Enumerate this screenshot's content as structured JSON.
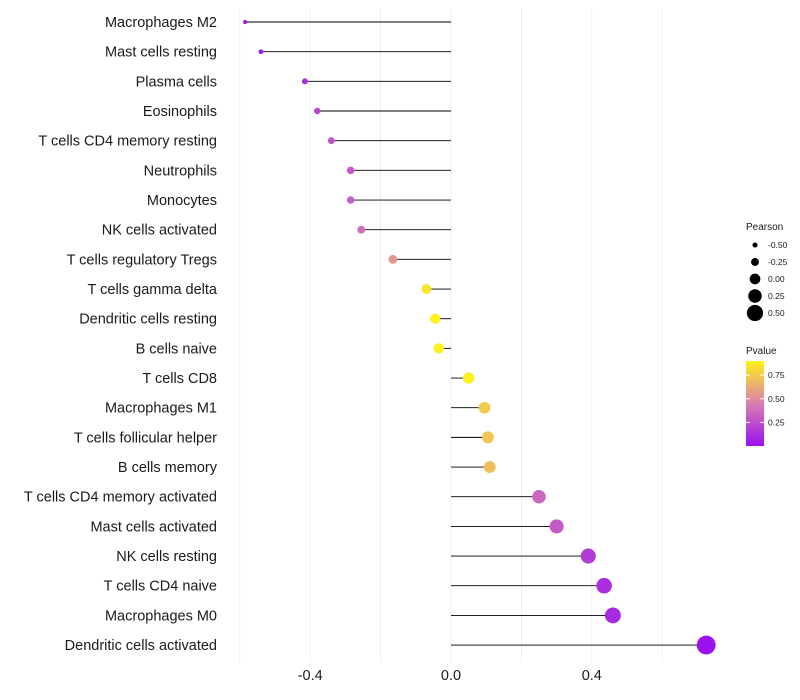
{
  "chart_data": {
    "type": "lollipop",
    "orientation": "horizontal",
    "categories": [
      "Macrophages M2",
      "Mast cells resting",
      "Plasma cells",
      "Eosinophils",
      "T cells CD4 memory resting",
      "Neutrophils",
      "Monocytes",
      "NK cells activated",
      "T cells regulatory  Tregs ",
      "T cells gamma delta",
      "Dendritic cells resting",
      "B cells naive",
      "T cells CD8",
      "Macrophages M1",
      "T cells follicular helper",
      "B cells memory",
      "T cells CD4 memory activated",
      "Mast cells activated",
      "NK cells resting",
      "T cells CD4 naive",
      "Macrophages M0",
      "Dendritic cells activated"
    ],
    "values": [
      -0.585,
      -0.54,
      -0.415,
      -0.38,
      -0.34,
      -0.285,
      -0.285,
      -0.255,
      -0.165,
      -0.07,
      -0.045,
      -0.035,
      0.05,
      0.095,
      0.105,
      0.11,
      0.25,
      0.3,
      0.39,
      0.435,
      0.46,
      0.725
    ],
    "pvalues": [
      0.02,
      0.03,
      0.12,
      0.22,
      0.28,
      0.3,
      0.32,
      0.38,
      0.55,
      0.85,
      0.95,
      0.93,
      0.95,
      0.75,
      0.72,
      0.7,
      0.35,
      0.3,
      0.18,
      0.12,
      0.1,
      0.01
    ],
    "xlim": [
      -0.61,
      0.78
    ],
    "xticks": [
      -0.4,
      0.0,
      0.4
    ],
    "xtick_labels": [
      "-0.4",
      "0.0",
      "0.4"
    ],
    "xlabel": "",
    "ylabel": "",
    "title": "",
    "grid": true,
    "legend_position": "right",
    "size_legend": {
      "title": "Pearson",
      "values": [
        -0.5,
        -0.25,
        0.0,
        0.25,
        0.5
      ],
      "labels": [
        "-0.50",
        "-0.25",
        "0.00",
        "0.25",
        "0.50"
      ]
    },
    "color_legend": {
      "title": "Pvalue",
      "ticks": [
        0.75,
        0.5,
        0.25
      ],
      "tick_labels": [
        "0.75",
        "0.50",
        "0.25"
      ],
      "range": [
        0.0,
        0.9
      ],
      "low_color": "#9a10f0",
      "mid_color": "#d97fb0",
      "high_color": "#fff21a"
    }
  }
}
